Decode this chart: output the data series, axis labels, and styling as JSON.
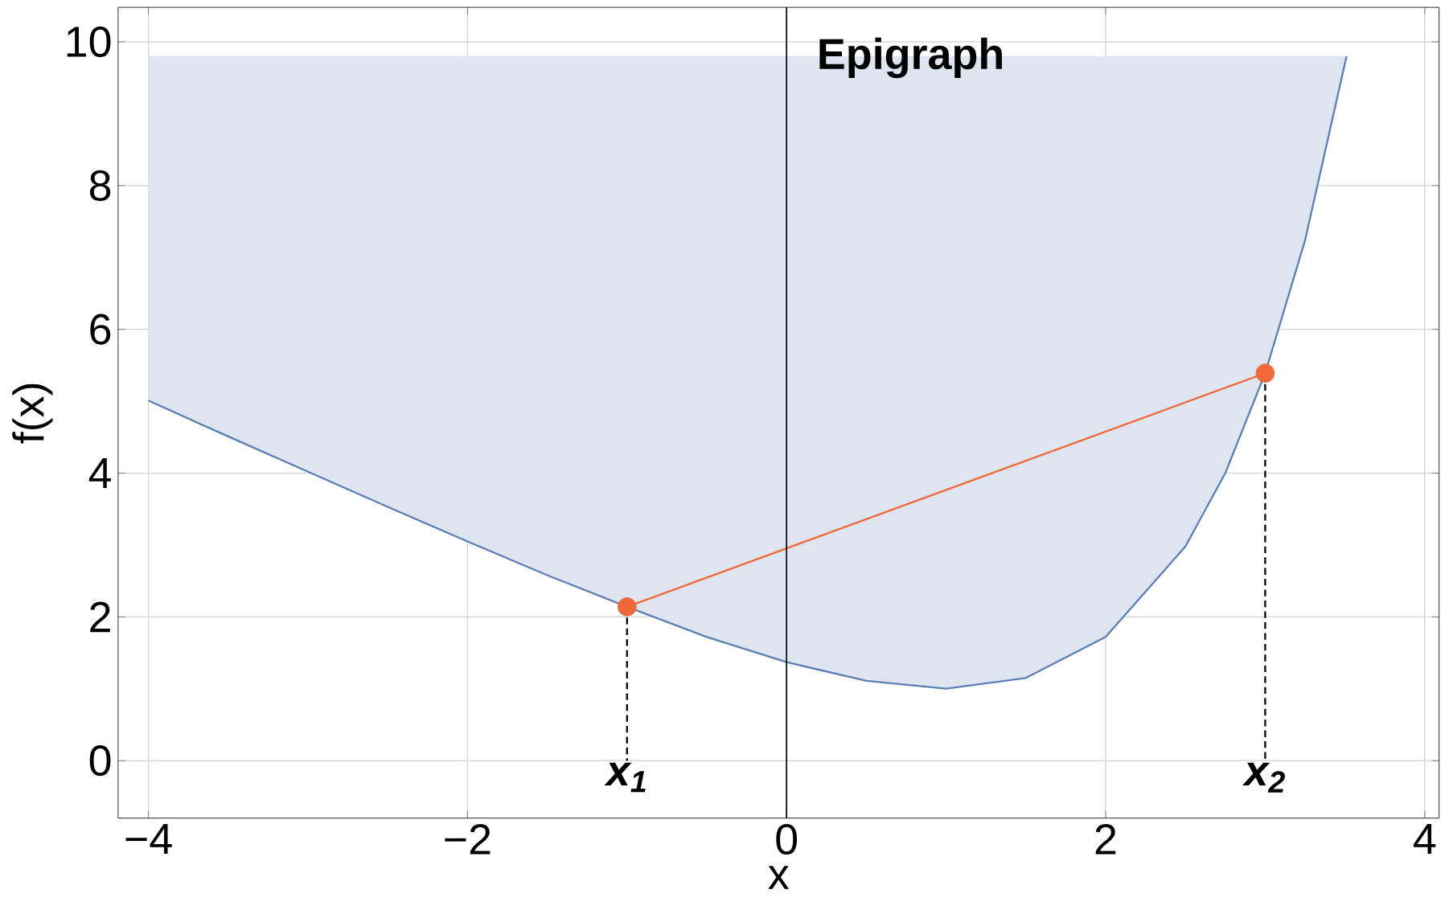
{
  "chart_data": {
    "type": "line",
    "xlabel": "x",
    "ylabel": "f(x)",
    "xlim": [
      -4.19,
      4.09
    ],
    "ylim": [
      -0.8,
      10.48
    ],
    "xticks": [
      {
        "value": -4,
        "label": "−4"
      },
      {
        "value": -2,
        "label": "−2"
      },
      0,
      2,
      4
    ],
    "yticks": [
      0,
      2,
      4,
      6,
      8,
      10
    ],
    "grid": true,
    "series": [
      {
        "color": "#5b7fb5",
        "x": [
          -4,
          -3.5,
          -3,
          -2.5,
          -2,
          -1.5,
          -1,
          -0.5,
          0,
          0.5,
          1,
          1.5,
          2,
          2.5,
          2.75,
          3,
          3.25,
          3.51
        ],
        "values": [
          5.01,
          4.51,
          4.02,
          3.53,
          3.05,
          2.58,
          2.14,
          1.72,
          1.37,
          1.11,
          1.0,
          1.15,
          1.72,
          2.98,
          4.0,
          5.39,
          7.24,
          9.8
        ],
        "upper": [
          9.8,
          9.8,
          9.8,
          9.8,
          9.8,
          9.8,
          9.8,
          9.8,
          9.8,
          9.8,
          9.8,
          9.8,
          9.8,
          9.8,
          9.8,
          9.8,
          9.8,
          9.8
        ],
        "lower": [
          5.01,
          4.51,
          4.02,
          3.53,
          3.05,
          2.58,
          2.14,
          1.72,
          1.37,
          1.11,
          1.0,
          1.15,
          1.72,
          2.98,
          4.0,
          5.39,
          7.24,
          9.8
        ]
      },
      {
        "color": "#f0693a",
        "x": [
          -1,
          3
        ],
        "values": [
          2.14,
          5.39
        ],
        "marker": "circle"
      },
      {
        "color": "#000000",
        "x": [
          -1,
          -1
        ],
        "values": [
          2.14,
          0
        ],
        "line_style": "dashed"
      },
      {
        "color": "#000000",
        "x": [
          3,
          3
        ],
        "values": [
          5.39,
          0
        ],
        "line_style": "dashed"
      }
    ],
    "ref_lines": [
      {
        "axis": "x",
        "value": 0,
        "color": "#000000"
      }
    ],
    "annotations": [
      "Epigraph",
      "x$_{1}$",
      "x$_{2}$"
    ]
  }
}
